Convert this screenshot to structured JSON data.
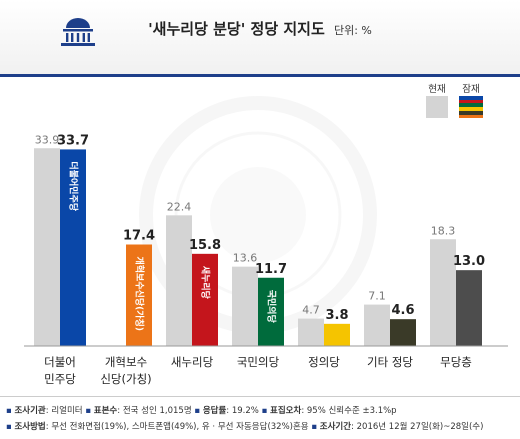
{
  "header": {
    "title": "'새누리당 분당' 정당 지지도",
    "unit": "단위: %"
  },
  "legend": {
    "current_label": "현재",
    "potential_label": "잠재"
  },
  "chart_data": {
    "type": "bar",
    "ylim": [
      0,
      36
    ],
    "categories": [
      {
        "line1": "더불어",
        "line2": "민주당"
      },
      {
        "line1": "개혁보수",
        "line2": "신당(가칭)"
      },
      {
        "line1": "새누리당",
        "line2": ""
      },
      {
        "line1": "국민의당",
        "line2": ""
      },
      {
        "line1": "정의당",
        "line2": ""
      },
      {
        "line1": "기타 정당",
        "line2": ""
      },
      {
        "line1": "무당층",
        "line2": ""
      }
    ],
    "series": [
      {
        "name": "현재",
        "values": [
          33.9,
          null,
          22.4,
          13.6,
          4.7,
          7.1,
          18.3
        ]
      },
      {
        "name": "잠재",
        "values": [
          33.7,
          17.4,
          15.8,
          11.7,
          3.8,
          4.6,
          13.0
        ]
      }
    ],
    "colors": {
      "current": "#d4d4d4",
      "potential": [
        "#0a47a8",
        "#ec7418",
        "#c4151c",
        "#006b3c",
        "#f5c400",
        "#3a3a28",
        "#4d4d4d"
      ]
    },
    "bar_texts": [
      "더불어민주당",
      "개혁보수신당(가칭)",
      "새누리당",
      "국민의당",
      "",
      "",
      ""
    ]
  },
  "footer": {
    "line1": {
      "k1": "조사기관",
      "v1": ": 리얼미터",
      "k2": "표본수",
      "v2": ": 전국 성인 1,015명",
      "k3": "응답률",
      "v3": ": 19.2%",
      "k4": "표집오차",
      "v4": ": 95% 신뢰수준 ±3.1%p"
    },
    "line2": {
      "k1": "조사방법",
      "v1": ": 무선 전화면접(19%), 스마트폰앱(49%), 유 · 무선 자동응답(32%)혼용",
      "k2": "조사기간",
      "v2": ": 2016년 12월 27일(화)~28일(수)"
    }
  }
}
